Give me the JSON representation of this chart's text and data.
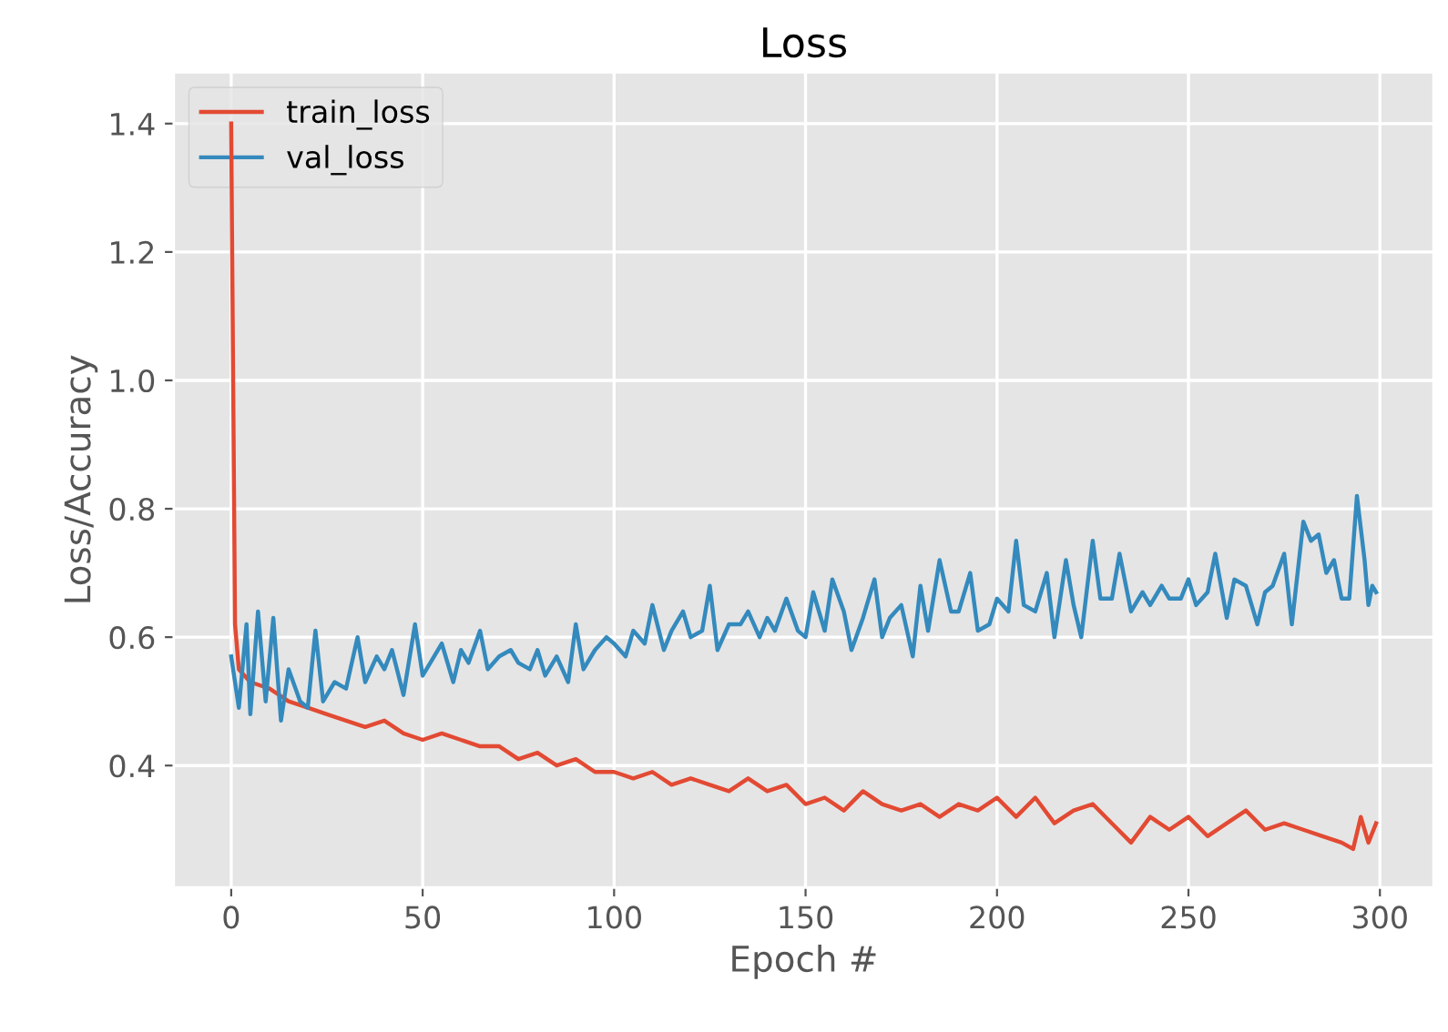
{
  "chart_data": {
    "type": "line",
    "title": "Loss",
    "xlabel": "Epoch #",
    "ylabel": "Loss/Accuracy",
    "xlim": [
      -15,
      314
    ],
    "ylim": [
      0.21,
      1.48
    ],
    "xticks": [
      0,
      50,
      100,
      150,
      200,
      250,
      300
    ],
    "yticks": [
      {
        "value": 0.4,
        "label": "0.4"
      },
      {
        "value": 0.6,
        "label": "0.6"
      },
      {
        "value": 0.8,
        "label": "0.8"
      },
      {
        "value": 1.0,
        "label": "1.0"
      },
      {
        "value": 1.2,
        "label": "1.2"
      },
      {
        "value": 1.4,
        "label": "1.4"
      }
    ],
    "grid": true,
    "legend": "top left",
    "series": [
      {
        "name": "train_loss",
        "color": "#e24a33",
        "x": [
          0,
          1,
          2,
          5,
          10,
          15,
          20,
          25,
          30,
          35,
          40,
          45,
          50,
          55,
          60,
          65,
          70,
          75,
          80,
          85,
          90,
          95,
          100,
          105,
          110,
          115,
          120,
          125,
          130,
          135,
          140,
          145,
          150,
          155,
          160,
          165,
          170,
          175,
          180,
          185,
          190,
          195,
          200,
          205,
          210,
          215,
          220,
          225,
          230,
          235,
          240,
          245,
          250,
          255,
          260,
          265,
          270,
          275,
          280,
          285,
          290,
          293,
          295,
          297,
          299
        ],
        "values": [
          1.4,
          0.62,
          0.55,
          0.53,
          0.52,
          0.5,
          0.49,
          0.48,
          0.47,
          0.46,
          0.47,
          0.45,
          0.44,
          0.45,
          0.44,
          0.43,
          0.43,
          0.41,
          0.42,
          0.4,
          0.41,
          0.39,
          0.39,
          0.38,
          0.39,
          0.37,
          0.38,
          0.37,
          0.36,
          0.38,
          0.36,
          0.37,
          0.34,
          0.35,
          0.33,
          0.36,
          0.34,
          0.33,
          0.34,
          0.32,
          0.34,
          0.33,
          0.35,
          0.32,
          0.35,
          0.31,
          0.33,
          0.34,
          0.31,
          0.28,
          0.32,
          0.3,
          0.32,
          0.29,
          0.31,
          0.33,
          0.3,
          0.31,
          0.3,
          0.29,
          0.28,
          0.27,
          0.32,
          0.28,
          0.31
        ]
      },
      {
        "name": "val_loss",
        "color": "#348abd",
        "x": [
          0,
          2,
          4,
          5,
          7,
          9,
          11,
          13,
          15,
          18,
          20,
          22,
          24,
          27,
          30,
          33,
          35,
          38,
          40,
          42,
          45,
          48,
          50,
          52,
          55,
          58,
          60,
          62,
          65,
          67,
          70,
          73,
          75,
          78,
          80,
          82,
          85,
          88,
          90,
          92,
          95,
          98,
          100,
          103,
          105,
          108,
          110,
          113,
          115,
          118,
          120,
          123,
          125,
          127,
          130,
          133,
          135,
          138,
          140,
          142,
          145,
          148,
          150,
          152,
          155,
          157,
          160,
          162,
          165,
          168,
          170,
          172,
          175,
          178,
          180,
          182,
          185,
          188,
          190,
          193,
          195,
          198,
          200,
          203,
          205,
          207,
          210,
          213,
          215,
          218,
          220,
          222,
          225,
          227,
          230,
          232,
          235,
          238,
          240,
          243,
          245,
          248,
          250,
          252,
          255,
          257,
          260,
          262,
          265,
          268,
          270,
          272,
          275,
          277,
          280,
          282,
          284,
          286,
          288,
          290,
          292,
          294,
          296,
          297,
          298,
          299
        ],
        "values": [
          0.57,
          0.49,
          0.62,
          0.48,
          0.64,
          0.5,
          0.63,
          0.47,
          0.55,
          0.5,
          0.49,
          0.61,
          0.5,
          0.53,
          0.52,
          0.6,
          0.53,
          0.57,
          0.55,
          0.58,
          0.51,
          0.62,
          0.54,
          0.56,
          0.59,
          0.53,
          0.58,
          0.56,
          0.61,
          0.55,
          0.57,
          0.58,
          0.56,
          0.55,
          0.58,
          0.54,
          0.57,
          0.53,
          0.62,
          0.55,
          0.58,
          0.6,
          0.59,
          0.57,
          0.61,
          0.59,
          0.65,
          0.58,
          0.61,
          0.64,
          0.6,
          0.61,
          0.68,
          0.58,
          0.62,
          0.62,
          0.64,
          0.6,
          0.63,
          0.61,
          0.66,
          0.61,
          0.6,
          0.67,
          0.61,
          0.69,
          0.64,
          0.58,
          0.63,
          0.69,
          0.6,
          0.63,
          0.65,
          0.57,
          0.68,
          0.61,
          0.72,
          0.64,
          0.64,
          0.7,
          0.61,
          0.62,
          0.66,
          0.64,
          0.75,
          0.65,
          0.64,
          0.7,
          0.6,
          0.72,
          0.65,
          0.6,
          0.75,
          0.66,
          0.66,
          0.73,
          0.64,
          0.67,
          0.65,
          0.68,
          0.66,
          0.66,
          0.69,
          0.65,
          0.67,
          0.73,
          0.63,
          0.69,
          0.68,
          0.62,
          0.67,
          0.68,
          0.73,
          0.62,
          0.78,
          0.75,
          0.76,
          0.7,
          0.72,
          0.66,
          0.66,
          0.82,
          0.72,
          0.65,
          0.68,
          0.67
        ]
      }
    ]
  }
}
